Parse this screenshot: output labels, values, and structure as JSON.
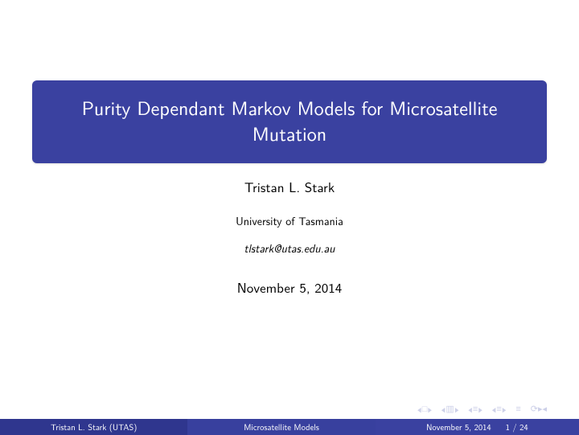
{
  "title": "Purity Dependant Markov Models for Microsatellite Mutation",
  "author": "Tristan L. Stark",
  "institution": "University of Tasmania",
  "email": "tlstark@utas.edu.au",
  "date": "November 5, 2014",
  "footer": {
    "left": "Tristan L. Stark  (UTAS)",
    "middle": "Microsatellite Models",
    "right_date": "November 5, 2014",
    "page": "1 / 24"
  },
  "colors": {
    "theme": "#3a41a0",
    "theme_dark": "#2f368e",
    "theme_mid": "#38409e",
    "nav_muted": "#cdd0e8"
  }
}
